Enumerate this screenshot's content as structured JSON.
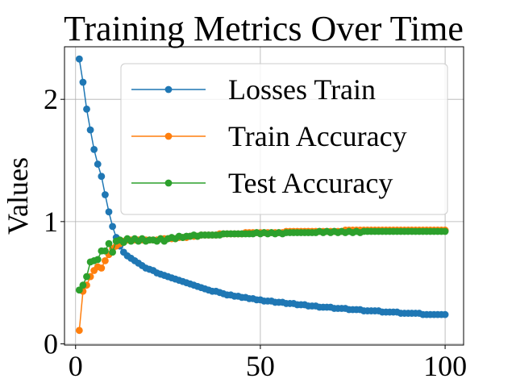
{
  "chart_data": {
    "type": "line",
    "title": "Training Metrics Over Time",
    "xlabel": "",
    "ylabel": "Values",
    "xlim": [
      -3,
      105
    ],
    "ylim": [
      -0.01,
      2.43
    ],
    "xticks": [
      0,
      50,
      100
    ],
    "yticks": [
      0,
      1,
      2
    ],
    "grid": true,
    "legend_position": "upper-right",
    "series": [
      {
        "name": "Losses Train",
        "color": "#1f77b4",
        "x": [
          1,
          2,
          3,
          4,
          5,
          6,
          7,
          8,
          9,
          10,
          11,
          12,
          13,
          14,
          15,
          16,
          17,
          18,
          19,
          20,
          21,
          22,
          23,
          24,
          25,
          26,
          27,
          28,
          29,
          30,
          31,
          32,
          33,
          34,
          35,
          36,
          37,
          38,
          39,
          40,
          41,
          42,
          43,
          44,
          45,
          46,
          47,
          48,
          49,
          50,
          51,
          52,
          53,
          54,
          55,
          56,
          57,
          58,
          59,
          60,
          61,
          62,
          63,
          64,
          65,
          66,
          67,
          68,
          69,
          70,
          71,
          72,
          73,
          74,
          75,
          76,
          77,
          78,
          79,
          80,
          81,
          82,
          83,
          84,
          85,
          86,
          87,
          88,
          89,
          90,
          91,
          92,
          93,
          94,
          95,
          96,
          97,
          98,
          99,
          100
        ],
        "y": [
          2.33,
          2.14,
          1.92,
          1.75,
          1.59,
          1.47,
          1.37,
          1.22,
          1.08,
          0.96,
          0.87,
          0.8,
          0.75,
          0.72,
          0.7,
          0.68,
          0.66,
          0.64,
          0.62,
          0.61,
          0.6,
          0.58,
          0.57,
          0.56,
          0.55,
          0.54,
          0.53,
          0.52,
          0.51,
          0.5,
          0.49,
          0.48,
          0.47,
          0.46,
          0.45,
          0.44,
          0.43,
          0.43,
          0.42,
          0.41,
          0.4,
          0.4,
          0.39,
          0.39,
          0.38,
          0.38,
          0.37,
          0.37,
          0.36,
          0.36,
          0.35,
          0.35,
          0.35,
          0.34,
          0.34,
          0.34,
          0.33,
          0.33,
          0.33,
          0.32,
          0.32,
          0.32,
          0.31,
          0.31,
          0.31,
          0.3,
          0.3,
          0.3,
          0.3,
          0.29,
          0.29,
          0.29,
          0.29,
          0.28,
          0.28,
          0.28,
          0.28,
          0.27,
          0.27,
          0.27,
          0.27,
          0.27,
          0.26,
          0.26,
          0.26,
          0.26,
          0.26,
          0.25,
          0.25,
          0.25,
          0.25,
          0.25,
          0.25,
          0.24,
          0.24,
          0.24,
          0.24,
          0.24,
          0.24,
          0.24
        ]
      },
      {
        "name": "Train Accuracy",
        "color": "#ff7f0e",
        "x": [
          1,
          2,
          3,
          4,
          5,
          6,
          7,
          8,
          9,
          10,
          11,
          12,
          13,
          14,
          15,
          16,
          17,
          18,
          19,
          20,
          21,
          22,
          23,
          24,
          25,
          26,
          27,
          28,
          29,
          30,
          31,
          32,
          33,
          34,
          35,
          36,
          37,
          38,
          39,
          40,
          41,
          42,
          43,
          44,
          45,
          46,
          47,
          48,
          49,
          50,
          51,
          52,
          53,
          54,
          55,
          56,
          57,
          58,
          59,
          60,
          61,
          62,
          63,
          64,
          65,
          66,
          67,
          68,
          69,
          70,
          71,
          72,
          73,
          74,
          75,
          76,
          77,
          78,
          79,
          80,
          81,
          82,
          83,
          84,
          85,
          86,
          87,
          88,
          89,
          90,
          91,
          92,
          93,
          94,
          95,
          96,
          97,
          98,
          99,
          100
        ],
        "y": [
          0.11,
          0.43,
          0.48,
          0.55,
          0.6,
          0.63,
          0.62,
          0.68,
          0.73,
          0.78,
          0.8,
          0.82,
          0.84,
          0.85,
          0.85,
          0.85,
          0.85,
          0.85,
          0.85,
          0.85,
          0.85,
          0.85,
          0.86,
          0.86,
          0.86,
          0.86,
          0.86,
          0.87,
          0.87,
          0.87,
          0.88,
          0.88,
          0.88,
          0.89,
          0.89,
          0.89,
          0.89,
          0.89,
          0.9,
          0.9,
          0.9,
          0.9,
          0.9,
          0.9,
          0.9,
          0.91,
          0.91,
          0.91,
          0.91,
          0.91,
          0.91,
          0.91,
          0.91,
          0.91,
          0.91,
          0.91,
          0.92,
          0.92,
          0.92,
          0.92,
          0.92,
          0.92,
          0.92,
          0.92,
          0.92,
          0.92,
          0.92,
          0.92,
          0.92,
          0.92,
          0.92,
          0.92,
          0.93,
          0.93,
          0.93,
          0.93,
          0.93,
          0.93,
          0.93,
          0.93,
          0.93,
          0.93,
          0.93,
          0.93,
          0.93,
          0.93,
          0.93,
          0.93,
          0.93,
          0.93,
          0.93,
          0.93,
          0.93,
          0.93,
          0.93,
          0.93,
          0.93,
          0.93,
          0.93,
          0.93
        ]
      },
      {
        "name": "Test Accuracy",
        "color": "#2ca02c",
        "x": [
          1,
          2,
          3,
          4,
          5,
          6,
          7,
          8,
          9,
          10,
          11,
          12,
          13,
          14,
          15,
          16,
          17,
          18,
          19,
          20,
          21,
          22,
          23,
          24,
          25,
          26,
          27,
          28,
          29,
          30,
          31,
          32,
          33,
          34,
          35,
          36,
          37,
          38,
          39,
          40,
          41,
          42,
          43,
          44,
          45,
          46,
          47,
          48,
          49,
          50,
          51,
          52,
          53,
          54,
          55,
          56,
          57,
          58,
          59,
          60,
          61,
          62,
          63,
          64,
          65,
          66,
          67,
          68,
          69,
          70,
          71,
          72,
          73,
          74,
          75,
          76,
          77,
          78,
          79,
          80,
          81,
          82,
          83,
          84,
          85,
          86,
          87,
          88,
          89,
          90,
          91,
          92,
          93,
          94,
          95,
          96,
          97,
          98,
          99,
          100
        ],
        "y": [
          0.44,
          0.48,
          0.55,
          0.67,
          0.68,
          0.69,
          0.76,
          0.76,
          0.82,
          0.75,
          0.84,
          0.85,
          0.83,
          0.86,
          0.84,
          0.86,
          0.84,
          0.86,
          0.84,
          0.85,
          0.85,
          0.84,
          0.86,
          0.84,
          0.86,
          0.87,
          0.86,
          0.88,
          0.87,
          0.88,
          0.88,
          0.89,
          0.88,
          0.89,
          0.89,
          0.89,
          0.89,
          0.89,
          0.89,
          0.9,
          0.9,
          0.9,
          0.9,
          0.9,
          0.9,
          0.9,
          0.9,
          0.9,
          0.91,
          0.9,
          0.91,
          0.9,
          0.91,
          0.9,
          0.91,
          0.9,
          0.91,
          0.91,
          0.91,
          0.91,
          0.91,
          0.91,
          0.91,
          0.91,
          0.91,
          0.92,
          0.91,
          0.92,
          0.91,
          0.92,
          0.91,
          0.92,
          0.91,
          0.92,
          0.91,
          0.92,
          0.91,
          0.92,
          0.92,
          0.92,
          0.92,
          0.92,
          0.92,
          0.92,
          0.92,
          0.92,
          0.92,
          0.92,
          0.92,
          0.92,
          0.92,
          0.92,
          0.92,
          0.92,
          0.92,
          0.92,
          0.92,
          0.92,
          0.92,
          0.92
        ]
      }
    ]
  }
}
